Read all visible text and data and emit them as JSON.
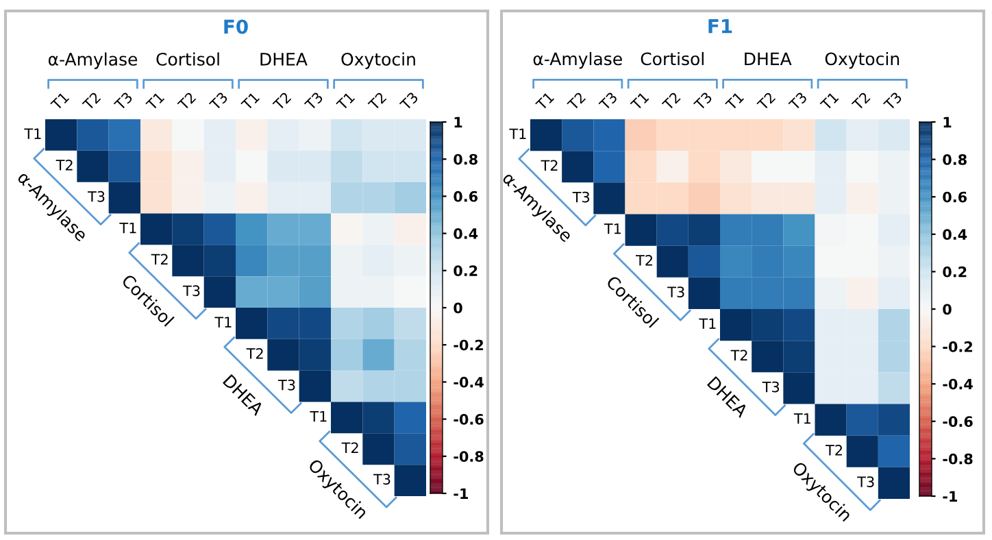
{
  "chart_data": [
    {
      "type": "heatmap",
      "title": "F0",
      "categories": [
        "T1",
        "T2",
        "T3",
        "T1",
        "T2",
        "T3",
        "T1",
        "T2",
        "T3",
        "T1",
        "T2",
        "T3"
      ],
      "y_categories": [
        "T1",
        "T2",
        "T3",
        "T1",
        "T2",
        "T3",
        "T1",
        "T2",
        "T3",
        "T1",
        "T2",
        "T3"
      ],
      "annotations": [
        "α-Amylase",
        "Cortisol",
        "DHEA",
        "Oxytocin"
      ],
      "cells": [
        [
          1,
          0.85,
          0.75,
          -0.1,
          0.0,
          0.1,
          -0.05,
          0.1,
          0.05,
          0.2,
          0.15,
          0.15
        ],
        [
          null,
          1,
          0.85,
          -0.15,
          -0.05,
          0.1,
          0.0,
          0.15,
          0.15,
          0.25,
          0.2,
          0.2
        ],
        [
          null,
          null,
          1,
          -0.15,
          -0.05,
          0.05,
          -0.05,
          0.1,
          0.1,
          0.3,
          0.3,
          0.35
        ],
        [
          null,
          null,
          null,
          1,
          0.95,
          0.85,
          0.6,
          0.5,
          0.5,
          -0.02,
          0.05,
          -0.05
        ],
        [
          null,
          null,
          null,
          null,
          1,
          0.95,
          0.65,
          0.55,
          0.55,
          0.05,
          0.1,
          0.05
        ],
        [
          null,
          null,
          null,
          null,
          null,
          1,
          0.5,
          0.5,
          0.55,
          0.05,
          0.05,
          0.0
        ],
        [
          null,
          null,
          null,
          null,
          null,
          null,
          1,
          0.9,
          0.9,
          0.3,
          0.35,
          0.25
        ],
        [
          null,
          null,
          null,
          null,
          null,
          null,
          null,
          1,
          0.95,
          0.35,
          0.5,
          0.3
        ],
        [
          null,
          null,
          null,
          null,
          null,
          null,
          null,
          null,
          1,
          0.25,
          0.3,
          0.3
        ],
        [
          null,
          null,
          null,
          null,
          null,
          null,
          null,
          null,
          null,
          1,
          0.95,
          0.8
        ],
        [
          null,
          null,
          null,
          null,
          null,
          null,
          null,
          null,
          null,
          null,
          1,
          0.85
        ],
        [
          null,
          null,
          null,
          null,
          null,
          null,
          null,
          null,
          null,
          null,
          null,
          1
        ]
      ],
      "clim": [
        -1,
        1
      ],
      "cticks": [
        -1,
        -0.8,
        -0.6,
        -0.4,
        -0.2,
        0,
        0.2,
        0.4,
        0.6,
        0.8,
        1
      ]
    },
    {
      "type": "heatmap",
      "title": "F1",
      "categories": [
        "T1",
        "T2",
        "T3",
        "T1",
        "T2",
        "T3",
        "T1",
        "T2",
        "T3",
        "T1",
        "T2",
        "T3"
      ],
      "y_categories": [
        "T1",
        "T2",
        "T3",
        "T1",
        "T2",
        "T3",
        "T1",
        "T2",
        "T3",
        "T1",
        "T2",
        "T3"
      ],
      "annotations": [
        "α-Amylase",
        "Cortisol",
        "DHEA",
        "Oxytocin"
      ],
      "cells": [
        [
          1,
          0.85,
          0.8,
          -0.25,
          -0.2,
          -0.2,
          -0.2,
          -0.2,
          -0.15,
          0.2,
          0.1,
          0.15
        ],
        [
          null,
          1,
          0.8,
          -0.2,
          -0.05,
          -0.2,
          -0.1,
          0.0,
          0.0,
          0.1,
          0.0,
          0.05
        ],
        [
          null,
          null,
          1,
          -0.2,
          -0.2,
          -0.25,
          -0.15,
          -0.1,
          -0.1,
          0.1,
          -0.05,
          0.05
        ],
        [
          null,
          null,
          null,
          1,
          0.9,
          0.95,
          0.7,
          0.7,
          0.6,
          0.02,
          0.0,
          0.1
        ],
        [
          null,
          null,
          null,
          null,
          1,
          0.85,
          0.65,
          0.7,
          0.65,
          0.0,
          0.0,
          0.05
        ],
        [
          null,
          null,
          null,
          null,
          null,
          1,
          0.7,
          0.7,
          0.7,
          0.05,
          -0.05,
          0.1
        ],
        [
          null,
          null,
          null,
          null,
          null,
          null,
          1,
          0.95,
          0.9,
          0.1,
          0.1,
          0.3
        ],
        [
          null,
          null,
          null,
          null,
          null,
          null,
          null,
          1,
          0.95,
          0.1,
          0.1,
          0.3
        ],
        [
          null,
          null,
          null,
          null,
          null,
          null,
          null,
          null,
          1,
          0.1,
          0.1,
          0.25
        ],
        [
          null,
          null,
          null,
          null,
          null,
          null,
          null,
          null,
          null,
          1,
          0.85,
          0.9
        ],
        [
          null,
          null,
          null,
          null,
          null,
          null,
          null,
          null,
          null,
          null,
          1,
          0.8
        ],
        [
          null,
          null,
          null,
          null,
          null,
          null,
          null,
          null,
          null,
          null,
          null,
          1
        ]
      ],
      "clim": [
        -1,
        1
      ],
      "cticks": [
        -1,
        -0.8,
        -0.6,
        -0.4,
        -0.2,
        0,
        0.2,
        0.4,
        0.6,
        0.8,
        1
      ]
    }
  ]
}
